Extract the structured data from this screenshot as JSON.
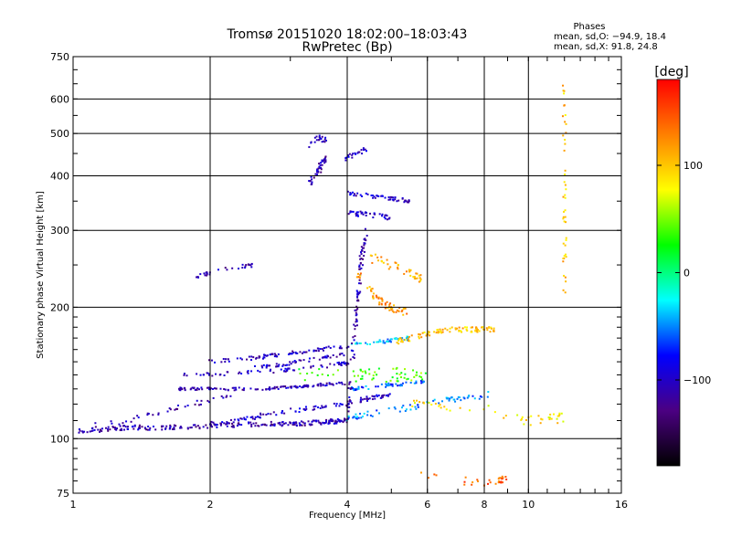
{
  "chart_data": {
    "type": "scatter",
    "title": "Tromsø 20151020 18:02:00–18:03:43",
    "subtitle": "RwPretec (Bp)",
    "stats": {
      "heading": "Phases",
      "line_o": "mean, sd,O: −94.9, 18.4",
      "line_x": "mean, sd,X:  91.8, 24.8"
    },
    "xlabel": "Frequency [MHz]",
    "ylabel": "Stationary phase Virtual Height [km]",
    "x_scale": "log",
    "y_scale": "log",
    "xlim": [
      1,
      16
    ],
    "ylim": [
      75,
      750
    ],
    "x_ticks": [
      1,
      2,
      4,
      6,
      8,
      10,
      16
    ],
    "x_tick_labels": [
      "1",
      "2",
      "4",
      "6",
      "8",
      "10",
      "16"
    ],
    "y_ticks": [
      75,
      100,
      200,
      300,
      400,
      500,
      600,
      750
    ],
    "y_tick_labels": [
      "75",
      "100",
      "200",
      "300",
      "400",
      "500",
      "600",
      "750"
    ],
    "grid": true,
    "colorbar": {
      "label": "[deg]",
      "range": [
        -180,
        180
      ],
      "ticks": [
        100,
        0,
        -100
      ],
      "tick_labels": [
        "100",
        "0",
        "−100"
      ],
      "stops": [
        "#000000",
        "#4b0082",
        "#0000ff",
        "#00ffff",
        "#00ff00",
        "#ffff00",
        "#ff8000",
        "#ff0000"
      ]
    },
    "traces": [
      {
        "x": [
          1.03,
          1.3,
          1.6,
          2.0,
          2.5,
          3.0,
          3.5,
          4.0
        ],
        "y": [
          104,
          106,
          106,
          107,
          108,
          108,
          109,
          110
        ],
        "phase": -110,
        "spread": 2.5,
        "n": 240
      },
      {
        "x": [
          2.0,
          2.5,
          3.0,
          3.5,
          4.0,
          4.5,
          5.0
        ],
        "y": [
          108,
          112,
          116,
          118,
          121,
          124,
          126
        ],
        "phase": -100,
        "spread": 2.5,
        "n": 110
      },
      {
        "x": [
          4.0,
          4.5,
          5.5,
          6.5,
          7.5,
          8.5
        ],
        "y": [
          111,
          114,
          118,
          122,
          124,
          127
        ],
        "phase": -50,
        "spread": 3,
        "n": 70
      },
      {
        "x": [
          1.05,
          1.3,
          1.6,
          1.9,
          2.2
        ],
        "y": [
          106,
          110,
          116,
          121,
          125
        ],
        "phase": -110,
        "spread": 3,
        "n": 40
      },
      {
        "x": [
          1.7,
          2.0,
          2.5,
          3.0,
          3.5,
          4.0
        ],
        "y": [
          130,
          130,
          130,
          131,
          133,
          134
        ],
        "phase": -110,
        "spread": 1.5,
        "n": 120
      },
      {
        "x": [
          1.7,
          2.2,
          2.8,
          3.3,
          3.8,
          4.0
        ],
        "y": [
          140,
          141,
          143,
          145,
          148,
          149
        ],
        "phase": -100,
        "spread": 2,
        "n": 70
      },
      {
        "x": [
          4.0,
          4.5,
          5.0,
          5.5,
          6.0
        ],
        "y": [
          130,
          131,
          133,
          134,
          135
        ],
        "phase": -60,
        "spread": 2,
        "n": 50
      },
      {
        "x": [
          2.0,
          2.5,
          3.0,
          3.5,
          4.0
        ],
        "y": [
          150,
          153,
          157,
          160,
          163
        ],
        "phase": -105,
        "spread": 2,
        "n": 80
      },
      {
        "x": [
          2.5,
          3.0,
          3.5,
          3.9
        ],
        "y": [
          145,
          149,
          153,
          156
        ],
        "phase": -100,
        "spread": 2,
        "n": 50
      },
      {
        "x": [
          4.0,
          4.5,
          5.0,
          5.5
        ],
        "y": [
          163,
          166,
          168,
          170
        ],
        "phase": -40,
        "spread": 2,
        "n": 40
      },
      {
        "x": [
          5.0,
          5.5,
          6.0,
          6.5,
          7.0,
          7.5,
          8.0,
          8.5
        ],
        "y": [
          165,
          170,
          174,
          177,
          178,
          178,
          178,
          178
        ],
        "phase": 100,
        "spread": 3,
        "n": 90
      },
      {
        "x": [
          4.0,
          4.1,
          4.2,
          4.3,
          4.4
        ],
        "y": [
          110,
          150,
          200,
          260,
          300
        ],
        "phase": -110,
        "spread": 4,
        "n": 90
      },
      {
        "x": [
          4.2,
          4.6,
          5.0,
          5.4
        ],
        "y": [
          240,
          210,
          200,
          195
        ],
        "phase": 120,
        "spread": 5,
        "n": 60
      },
      {
        "x": [
          4.5,
          5.0,
          5.5,
          5.9
        ],
        "y": [
          260,
          250,
          240,
          230
        ],
        "phase": 110,
        "spread": 5,
        "n": 40
      },
      {
        "x": [
          4.0,
          4.5,
          5.0,
          5.5
        ],
        "y": [
          365,
          360,
          355,
          350
        ],
        "phase": -100,
        "spread": 2,
        "n": 50
      },
      {
        "x": [
          4.0,
          4.5,
          5.0
        ],
        "y": [
          330,
          325,
          320
        ],
        "phase": -100,
        "spread": 3,
        "n": 40
      },
      {
        "x": [
          3.3,
          3.4,
          3.5,
          3.6
        ],
        "y": [
          380,
          400,
          420,
          440
        ],
        "phase": -110,
        "spread": 4,
        "n": 40
      },
      {
        "x": [
          3.3,
          3.45,
          3.6
        ],
        "y": [
          470,
          490,
          480
        ],
        "phase": -110,
        "spread": 3,
        "n": 20
      },
      {
        "x": [
          4.0,
          4.2,
          4.4
        ],
        "y": [
          440,
          450,
          460
        ],
        "phase": -100,
        "spread": 3,
        "n": 20
      },
      {
        "x": [
          1.85,
          2.0,
          2.2,
          2.5
        ],
        "y": [
          235,
          240,
          245,
          250
        ],
        "phase": -110,
        "spread": 2,
        "n": 30
      },
      {
        "x": [
          12.0,
          12.0,
          12.0
        ],
        "y": [
          210,
          350,
          650
        ],
        "phase": 100,
        "spread": 1,
        "n": 45
      },
      {
        "x": [
          5.5,
          8.0,
          10.0,
          12.0
        ],
        "y": [
          120,
          118,
          110,
          112
        ],
        "phase": 90,
        "spread": 6,
        "n": 50
      },
      {
        "x": [
          5.5,
          7.0,
          8.5,
          9.0
        ],
        "y": [
          85,
          80,
          80,
          82
        ],
        "phase": 140,
        "spread": 5,
        "n": 30
      },
      {
        "x": [
          3.0,
          4.0,
          5.0,
          6.0
        ],
        "y": [
          140,
          140,
          140,
          140
        ],
        "phase": 40,
        "spread": 8,
        "n": 60
      }
    ]
  }
}
